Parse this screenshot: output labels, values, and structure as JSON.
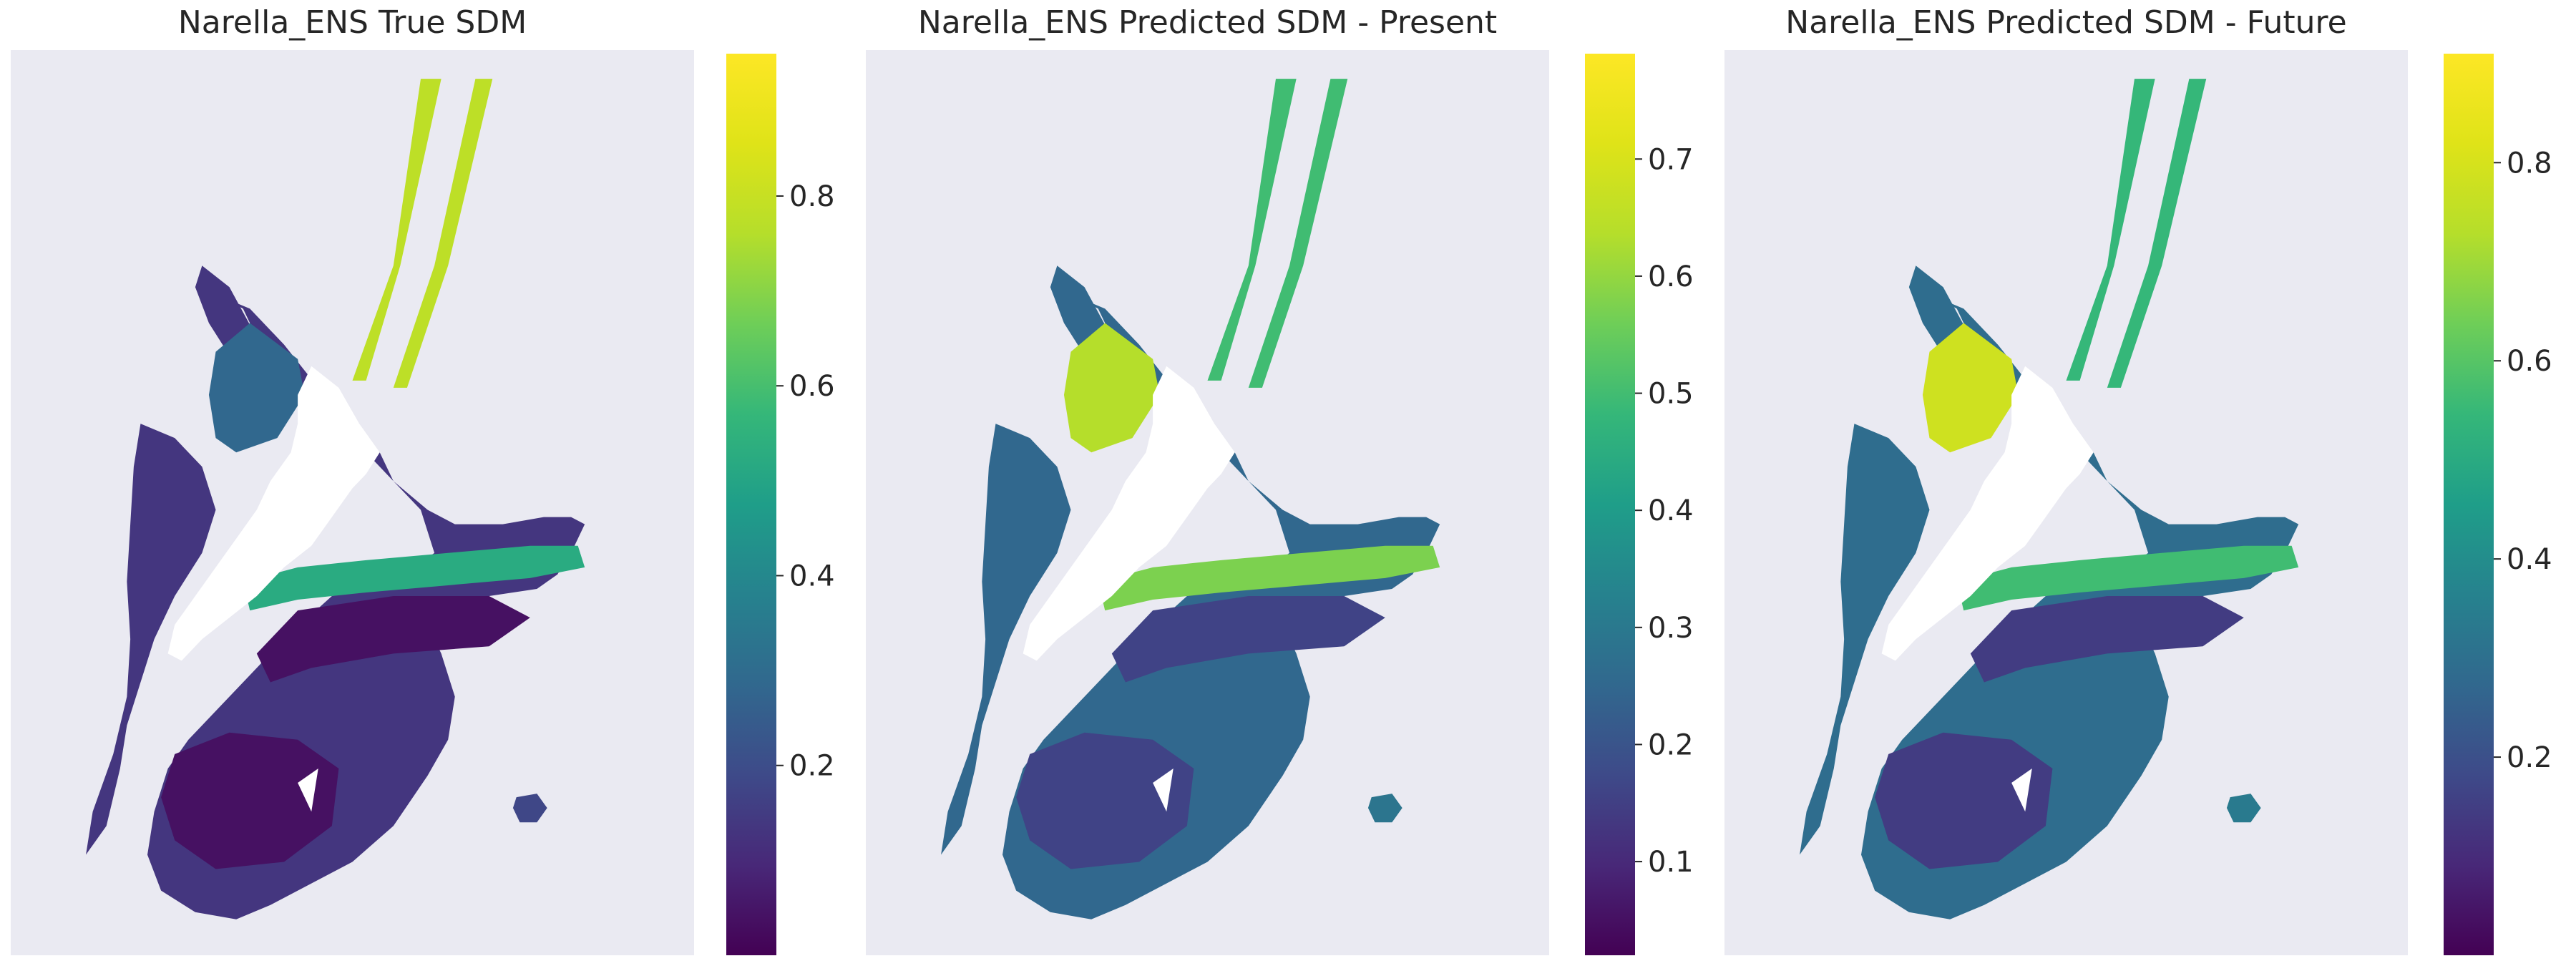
{
  "chart_data": [
    {
      "type": "heatmap",
      "title": "Narella_ENS True SDM",
      "colormap": "viridis",
      "background_color": "#eaeaf2",
      "colorbar": {
        "ticks": [
          0.2,
          0.4,
          0.6,
          0.8
        ],
        "tick_labels": [
          "0.2",
          "0.4",
          "0.6",
          "0.8"
        ],
        "range": [
          0.0,
          0.95
        ]
      },
      "grid": false
    },
    {
      "type": "heatmap",
      "title": "Narella_ENS Predicted SDM - Present",
      "colormap": "viridis",
      "background_color": "#eaeaf2",
      "colorbar": {
        "ticks": [
          0.1,
          0.2,
          0.3,
          0.4,
          0.5,
          0.6,
          0.7
        ],
        "tick_labels": [
          "0.1",
          "0.2",
          "0.3",
          "0.4",
          "0.5",
          "0.6",
          "0.7"
        ],
        "range": [
          0.02,
          0.79
        ]
      },
      "grid": false
    },
    {
      "type": "heatmap",
      "title": "Narella_ENS Predicted SDM - Future",
      "colormap": "viridis",
      "background_color": "#eaeaf2",
      "colorbar": {
        "ticks": [
          0.2,
          0.4,
          0.6,
          0.8
        ],
        "tick_labels": [
          "0.2",
          "0.4",
          "0.6",
          "0.8"
        ],
        "range": [
          0.0,
          0.91
        ]
      },
      "grid": false
    }
  ]
}
